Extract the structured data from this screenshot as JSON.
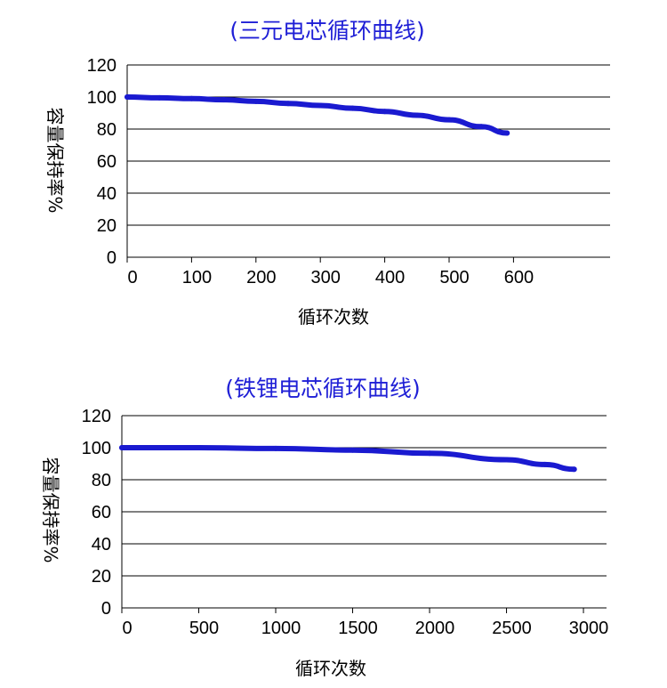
{
  "chart_data": [
    {
      "type": "line",
      "title": "(三元电芯循环曲线)",
      "xlabel": "循环次数",
      "ylabel": "容量保持率%",
      "xlim": [
        0,
        750
      ],
      "ylim": [
        0,
        120
      ],
      "xticks": [
        0,
        100,
        200,
        300,
        400,
        500,
        600
      ],
      "yticks": [
        0,
        20,
        40,
        60,
        80,
        100,
        120
      ],
      "grid": "horizontal",
      "colors": {
        "title": "#1f1fd6",
        "series": "#1a1ad0"
      },
      "series": [
        {
          "x": [
            0,
            50,
            100,
            150,
            200,
            250,
            300,
            350,
            400,
            450,
            500,
            550,
            590
          ],
          "y": [
            100,
            99.5,
            99,
            98.3,
            97.3,
            96,
            94.7,
            93,
            91,
            88.6,
            85.8,
            81.5,
            77.5
          ]
        }
      ]
    },
    {
      "type": "line",
      "title": "(铁锂电芯循环曲线)",
      "xlabel": "循环次数",
      "ylabel": "容量保持率%",
      "xlim": [
        0,
        3150
      ],
      "ylim": [
        0,
        120
      ],
      "xticks": [
        0,
        500,
        1000,
        1500,
        2000,
        2500,
        3000
      ],
      "yticks": [
        0,
        20,
        40,
        60,
        80,
        100,
        120
      ],
      "grid": "horizontal",
      "colors": {
        "title": "#1f1fd6",
        "series": "#1a1ad0"
      },
      "series": [
        {
          "x": [
            0,
            500,
            1000,
            1500,
            2000,
            2500,
            2750,
            2940
          ],
          "y": [
            100,
            100,
            99.5,
            98.5,
            96.5,
            92.5,
            89.5,
            86.5
          ]
        }
      ]
    }
  ]
}
